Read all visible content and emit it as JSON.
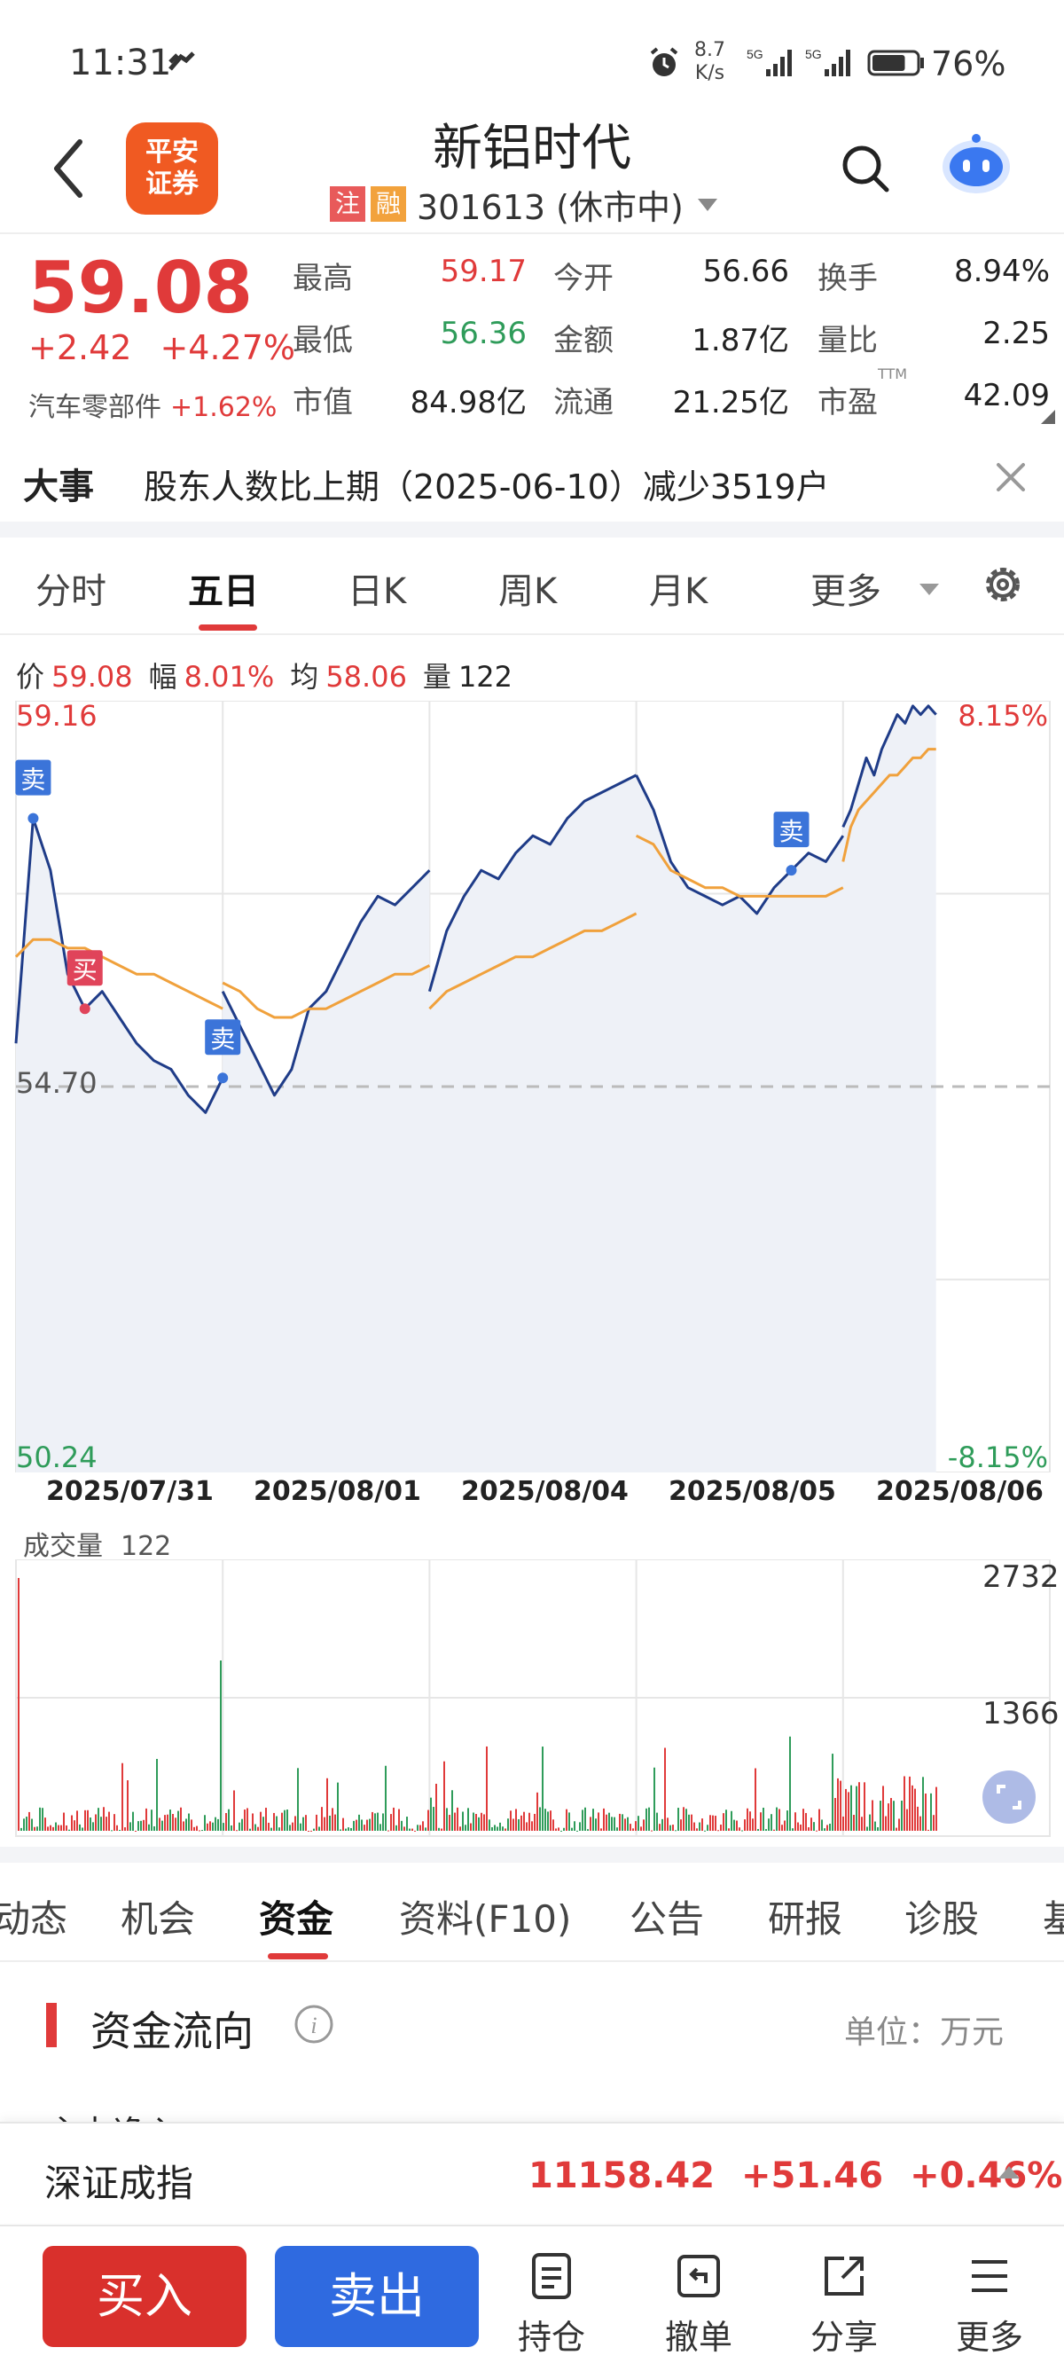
{
  "status_bar": {
    "time": "11:31",
    "net_speed_value": "8.7",
    "net_speed_unit": "K/s",
    "signal_1": "5G",
    "signal_2": "5G",
    "battery_level": 0.76,
    "battery_pct": "76%"
  },
  "header": {
    "broker_logo_text_1": "平安",
    "broker_logo_text_2": "证券",
    "stock_name": "新铝时代",
    "tag_zhu": "注",
    "tag_rong": "融",
    "code_status": "301613 (休市中)"
  },
  "quote": {
    "price": "59.08",
    "change": "+2.42",
    "change_pct": "+4.27%",
    "sector_name": "汽车零部件",
    "sector_pct": "+1.62%",
    "stats": [
      {
        "label": "最高",
        "value": "59.17",
        "tone": "red"
      },
      {
        "label": "今开",
        "value": "56.66",
        "tone": "plain"
      },
      {
        "label": "换手",
        "value": "8.94%",
        "tone": "plain"
      },
      {
        "label": "最低",
        "value": "56.36",
        "tone": "green"
      },
      {
        "label": "金额",
        "value": "1.87亿",
        "tone": "plain"
      },
      {
        "label": "量比",
        "value": "2.25",
        "tone": "plain"
      },
      {
        "label": "市值",
        "value": "84.98亿",
        "tone": "plain"
      },
      {
        "label": "流通",
        "value": "21.25亿",
        "tone": "plain"
      },
      {
        "label": "市盈",
        "value": "42.09",
        "tone": "plain"
      }
    ],
    "pe_superscript": "TTM"
  },
  "news": {
    "tag": "大事",
    "text": "股东人数比上期（2025-06-10）减少3519户"
  },
  "period_tabs": [
    "分时",
    "五日",
    "日K",
    "周K",
    "月K",
    "更多"
  ],
  "active_period": "五日",
  "chart_info": {
    "price_label": "价",
    "price": "59.08",
    "amp_label": "幅",
    "amp": "8.01%",
    "avg_label": "均",
    "avg": "58.06",
    "vol_label": "量",
    "vol": "122"
  },
  "chart_data": {
    "type": "line",
    "y_max_label": "59.16",
    "y_ref_label": "54.70",
    "y_min_label": "50.24",
    "pct_max_label": "8.15%",
    "pct_min_label": "-8.15%",
    "ylim": [
      50.24,
      59.16
    ],
    "reference_price": 54.7,
    "x_dates": [
      "2025/07/31",
      "2025/08/01",
      "2025/08/04",
      "2025/08/05",
      "2025/08/06"
    ],
    "series": [
      {
        "values": [
          [
            55.2,
            57.8,
            57.2,
            56.0,
            55.6,
            55.8,
            55.5,
            55.2,
            55.0,
            54.9,
            54.6,
            54.4,
            54.8
          ],
          [
            55.8,
            55.4,
            55.0,
            54.6,
            54.9,
            55.6,
            55.8,
            56.2,
            56.6,
            56.9,
            56.8,
            57.0,
            57.2
          ],
          [
            55.8,
            56.5,
            56.9,
            57.2,
            57.1,
            57.4,
            57.6,
            57.5,
            57.8,
            58.0,
            58.1,
            58.2,
            58.3
          ],
          [
            58.3,
            57.9,
            57.3,
            57.0,
            56.9,
            56.8,
            56.9,
            56.7,
            57.0,
            57.2,
            57.4,
            57.3,
            57.6
          ],
          [
            57.7,
            57.9,
            58.2,
            58.5,
            58.3,
            58.6,
            58.8,
            59.0,
            58.9,
            59.1,
            59.0,
            59.1,
            59.0
          ]
        ]
      },
      {
        "values": [
          [
            56.2,
            56.4,
            56.4,
            56.3,
            56.3,
            56.2,
            56.1,
            56.0,
            56.0,
            55.9,
            55.8,
            55.7,
            55.6
          ],
          [
            55.9,
            55.8,
            55.6,
            55.5,
            55.5,
            55.6,
            55.6,
            55.7,
            55.8,
            55.9,
            56.0,
            56.0,
            56.1
          ],
          [
            55.6,
            55.8,
            55.9,
            56.0,
            56.1,
            56.2,
            56.2,
            56.3,
            56.4,
            56.5,
            56.5,
            56.6,
            56.7
          ],
          [
            57.6,
            57.5,
            57.2,
            57.1,
            57.0,
            57.0,
            56.9,
            56.9,
            56.9,
            56.9,
            56.9,
            56.9,
            57.0
          ],
          [
            57.3,
            57.7,
            57.9,
            58.0,
            58.1,
            58.2,
            58.3,
            58.3,
            58.4,
            58.5,
            58.5,
            58.6,
            58.6
          ]
        ]
      }
    ],
    "markers": [
      {
        "label": "卖",
        "type": "sell",
        "day": 0,
        "idx": 1
      },
      {
        "label": "买",
        "type": "buy",
        "day": 0,
        "idx": 4
      },
      {
        "label": "卖",
        "type": "sell",
        "day": 0,
        "idx": 12
      },
      {
        "label": "卖",
        "type": "sell",
        "day": 3,
        "idx": 9
      }
    ],
    "marker_buy_color": "#e0445a",
    "marker_sell_color": "#3b74d9",
    "price_line_color": "#1f3c88",
    "avg_line_color": "#f0a13c",
    "ref_line_color": "#bbbbbb"
  },
  "volume": {
    "title": "成交量",
    "value": "122",
    "max_label": "2732",
    "mid_label": "1366",
    "max": 2732,
    "series_color_up": "#e03a3a",
    "series_color_down": "#2f9c5a"
  },
  "info_tabs": [
    "动态",
    "机会",
    "资金",
    "资料(F10)",
    "公告",
    "研报",
    "诊股",
    "基"
  ],
  "active_info_tab": "资金",
  "money_flow": {
    "title": "资金流向",
    "unit": "单位：万元",
    "row_partial": "主力净入"
  },
  "index_strip": {
    "name": "深证成指",
    "value": "11158.42",
    "change": "+51.46",
    "change_pct": "+0.46%"
  },
  "bottom_bar": {
    "buy": "买入",
    "sell": "卖出",
    "holdings": "持仓",
    "cancel": "撤单",
    "share": "分享",
    "more": "更多"
  }
}
